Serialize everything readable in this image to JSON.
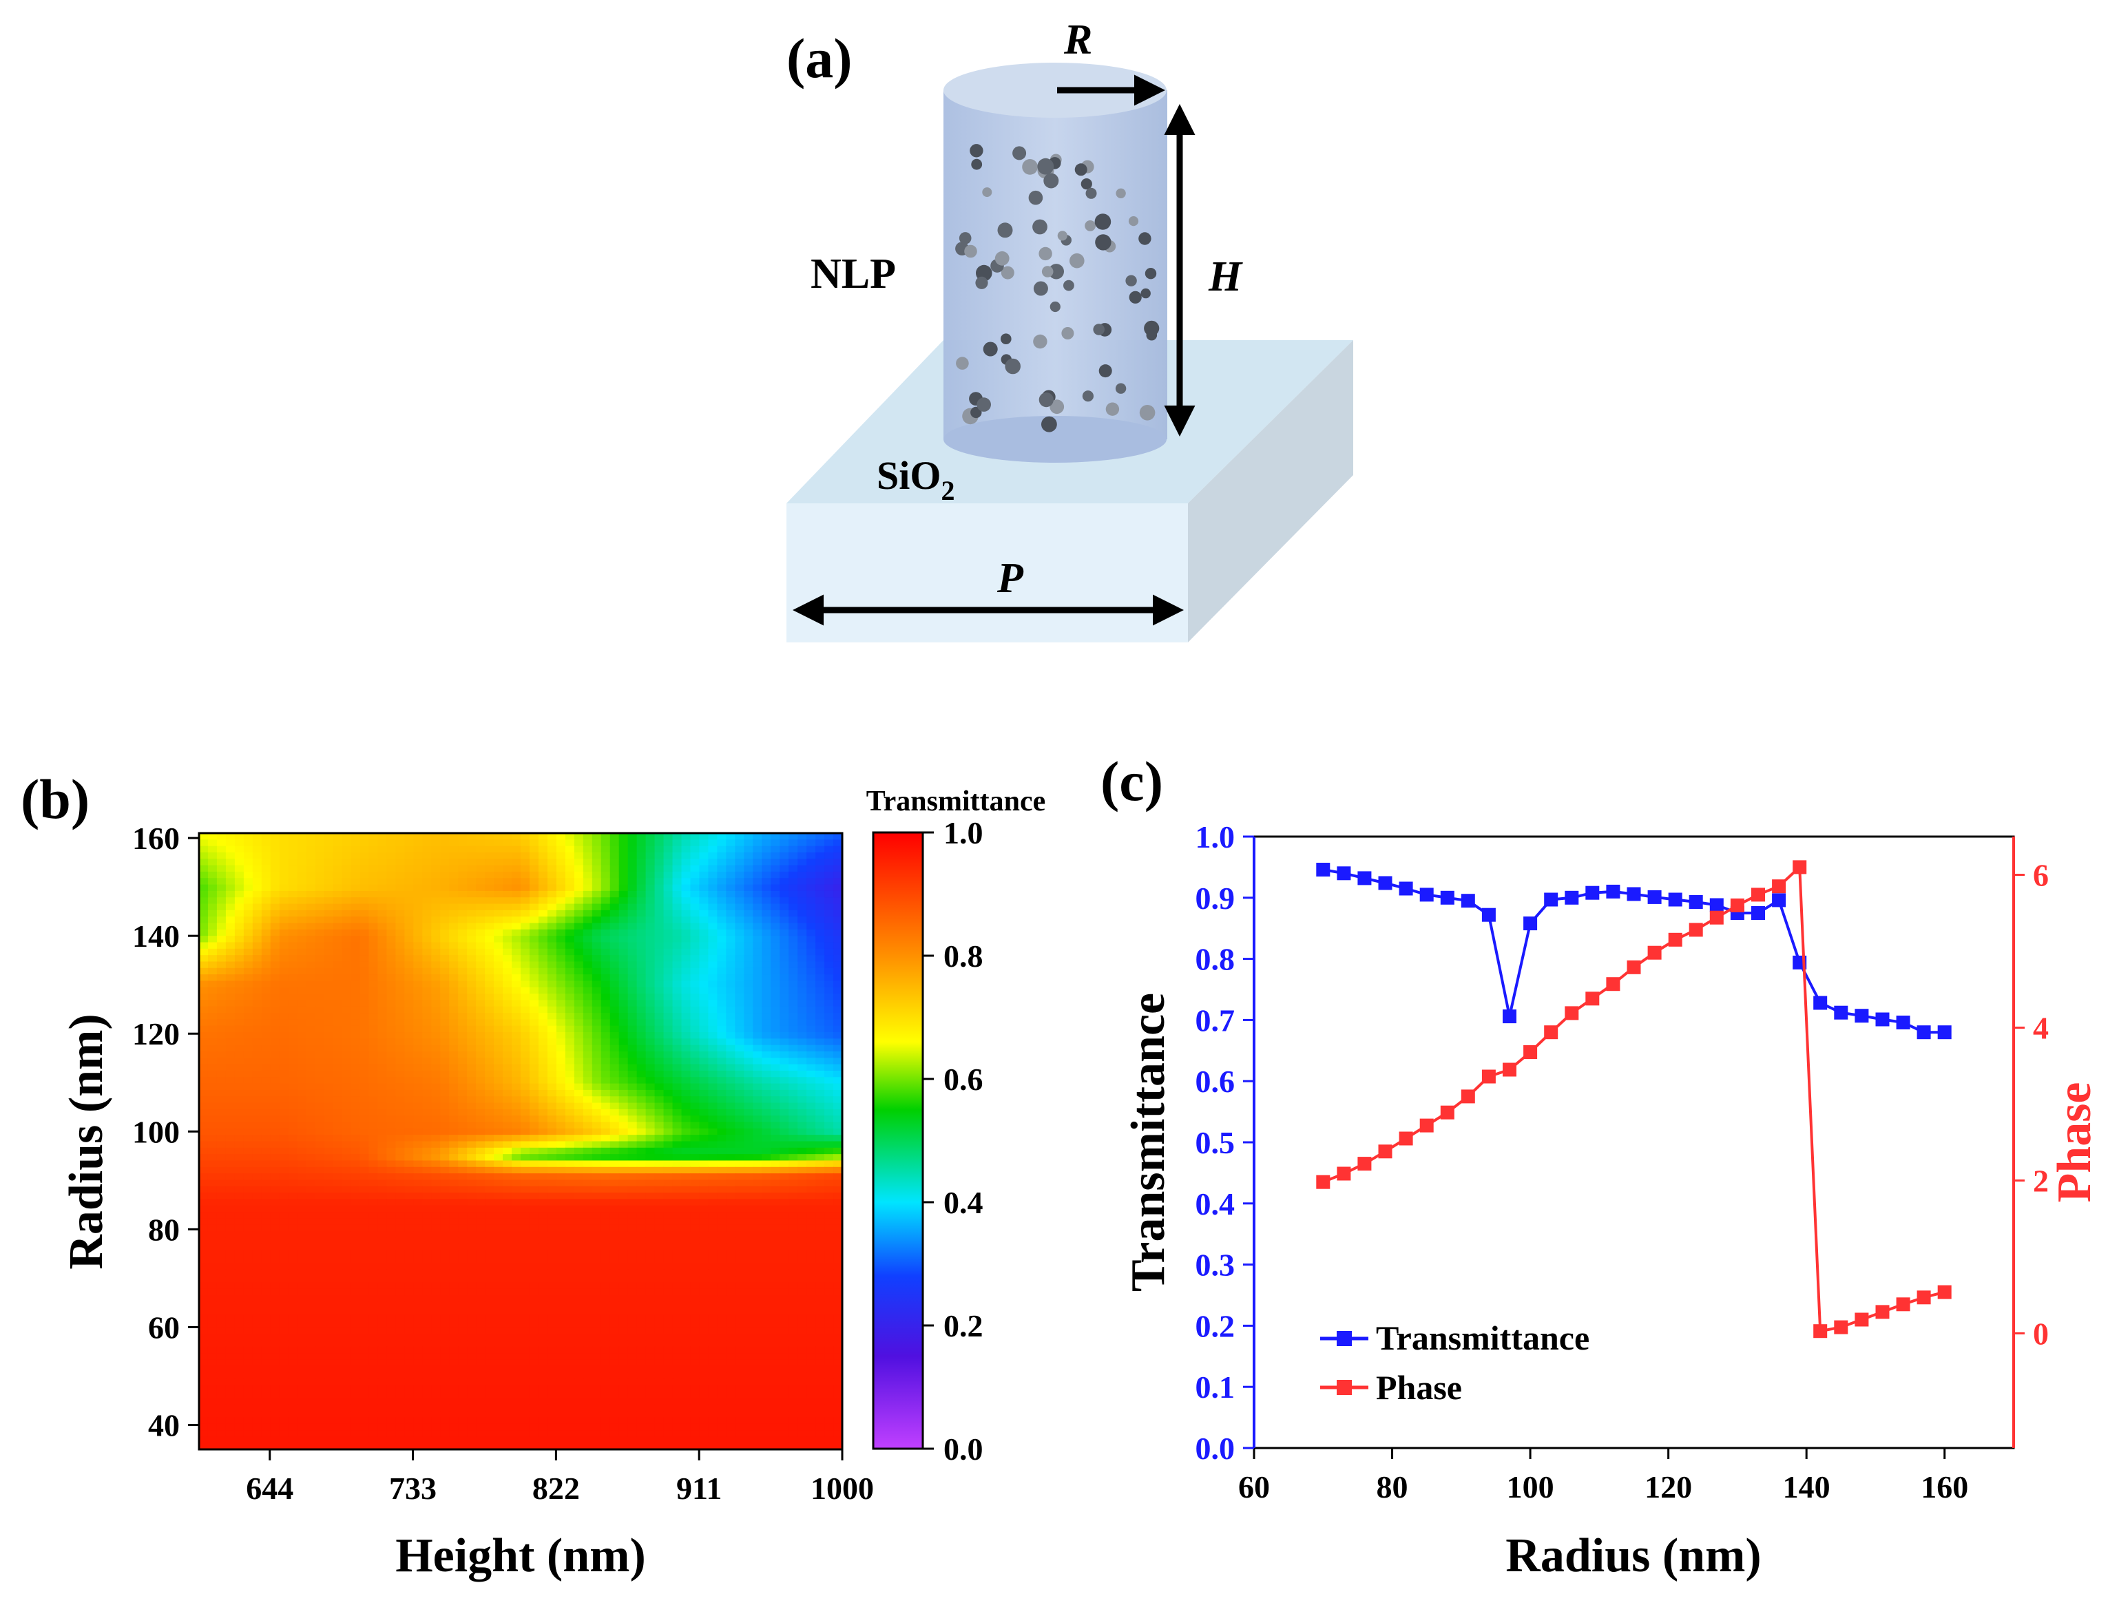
{
  "panel_a": {
    "label": "(a)",
    "label_r": "R",
    "label_h": "H",
    "label_p": "P",
    "label_nlp": "NLP",
    "label_sio2_main": "SiO",
    "label_sio2_sub": "2"
  },
  "colors": {
    "accent_blue": "#1a1aff",
    "accent_red": "#ff3333",
    "cylinder_fill": "#b3c6e6",
    "substrate_top": "#d2e6f2",
    "substrate_front": "#e4f1fa",
    "substrate_side": "#c9d6e0",
    "dots": [
      "#5f6670",
      "#8f96a0",
      "#4a5059"
    ]
  },
  "chart_data": [
    {
      "id": "b",
      "panel_label": "(b)",
      "type": "heatmap",
      "title": "",
      "xlabel": "Height (nm)",
      "ylabel": "Radius (nm)",
      "xlim": [
        600,
        1000
      ],
      "ylim": [
        35,
        161
      ],
      "x_ticks": [
        644,
        733,
        822,
        911,
        1000
      ],
      "y_ticks": [
        40,
        60,
        80,
        100,
        120,
        140,
        160
      ],
      "colorbar": {
        "title": "Transmittance",
        "range": [
          0,
          1
        ],
        "ticks": [
          "0.0",
          "0.2",
          "0.4",
          "0.6",
          "0.8",
          "1.0"
        ],
        "stops": [
          {
            "v": 0.0,
            "c": "#c040ff"
          },
          {
            "v": 0.15,
            "c": "#5010e0"
          },
          {
            "v": 0.28,
            "c": "#1040ff"
          },
          {
            "v": 0.4,
            "c": "#00e5ff"
          },
          {
            "v": 0.55,
            "c": "#00d000"
          },
          {
            "v": 0.66,
            "c": "#ffff00"
          },
          {
            "v": 0.8,
            "c": "#ff9000"
          },
          {
            "v": 1.0,
            "c": "#ff0000"
          }
        ]
      },
      "grid_x": [
        600,
        650,
        700,
        750,
        800,
        850,
        900,
        950,
        1000
      ],
      "grid_y": [
        35,
        85,
        91,
        95,
        100,
        110,
        120,
        130,
        140,
        150,
        161
      ],
      "values": [
        [
          0.97,
          0.97,
          0.97,
          0.97,
          0.97,
          0.97,
          0.97,
          0.97,
          0.97
        ],
        [
          0.95,
          0.95,
          0.95,
          0.95,
          0.95,
          0.95,
          0.95,
          0.95,
          0.95
        ],
        [
          0.92,
          0.92,
          0.91,
          0.89,
          0.86,
          0.85,
          0.86,
          0.87,
          0.9
        ],
        [
          0.9,
          0.9,
          0.88,
          0.78,
          0.58,
          0.54,
          0.52,
          0.53,
          0.6
        ],
        [
          0.88,
          0.88,
          0.86,
          0.85,
          0.82,
          0.72,
          0.58,
          0.52,
          0.45
        ],
        [
          0.86,
          0.86,
          0.85,
          0.83,
          0.75,
          0.6,
          0.52,
          0.45,
          0.4
        ],
        [
          0.84,
          0.85,
          0.84,
          0.8,
          0.72,
          0.58,
          0.45,
          0.35,
          0.3
        ],
        [
          0.8,
          0.84,
          0.84,
          0.78,
          0.66,
          0.55,
          0.42,
          0.35,
          0.28
        ],
        [
          0.6,
          0.8,
          0.84,
          0.72,
          0.62,
          0.5,
          0.45,
          0.35,
          0.25
        ],
        [
          0.58,
          0.7,
          0.74,
          0.76,
          0.8,
          0.62,
          0.4,
          0.3,
          0.2
        ],
        [
          0.66,
          0.7,
          0.72,
          0.74,
          0.72,
          0.6,
          0.45,
          0.36,
          0.3
        ]
      ]
    },
    {
      "id": "c",
      "panel_label": "(c)",
      "type": "line",
      "title": "",
      "xlabel": "Radius (nm)",
      "ylabel": "Transmittance",
      "y2label": "Phase",
      "xlim": [
        60,
        170
      ],
      "ylim": [
        0,
        1
      ],
      "y2lim": [
        -1.5,
        6.5
      ],
      "x_ticks": [
        60,
        80,
        100,
        120,
        140,
        160
      ],
      "y_ticks": [
        "0.0",
        "0.1",
        "0.2",
        "0.3",
        "0.4",
        "0.5",
        "0.6",
        "0.7",
        "0.8",
        "0.9",
        "1.0"
      ],
      "y2_ticks": [
        0,
        2,
        4,
        6
      ],
      "x": [
        70,
        73,
        76,
        79,
        82,
        85,
        88,
        91,
        94,
        97,
        100,
        103,
        106,
        109,
        112,
        115,
        118,
        121,
        124,
        127,
        130,
        133,
        136,
        139,
        142,
        145,
        148,
        151,
        154,
        157,
        160
      ],
      "series": [
        {
          "name": "Transmittance",
          "axis": "left",
          "color": "#1a1aff",
          "values": [
            0.946,
            0.94,
            0.932,
            0.924,
            0.915,
            0.905,
            0.9,
            0.895,
            0.872,
            0.706,
            0.858,
            0.897,
            0.9,
            0.908,
            0.91,
            0.906,
            0.901,
            0.897,
            0.893,
            0.888,
            0.875,
            0.875,
            0.896,
            0.794,
            0.728,
            0.712,
            0.707,
            0.701,
            0.696,
            0.68,
            0.68
          ]
        },
        {
          "name": "Phase",
          "axis": "right",
          "color": "#ff3333",
          "values": [
            1.98,
            2.09,
            2.22,
            2.38,
            2.55,
            2.72,
            2.89,
            3.1,
            3.36,
            3.45,
            3.68,
            3.94,
            4.19,
            4.38,
            4.57,
            4.79,
            4.98,
            5.15,
            5.28,
            5.44,
            5.6,
            5.74,
            5.85,
            6.1,
            0.03,
            0.08,
            0.18,
            0.28,
            0.38,
            0.47,
            0.54
          ]
        }
      ],
      "legend": {
        "position": "bottom-left",
        "entries": [
          "Transmittance",
          "Phase"
        ]
      }
    }
  ]
}
